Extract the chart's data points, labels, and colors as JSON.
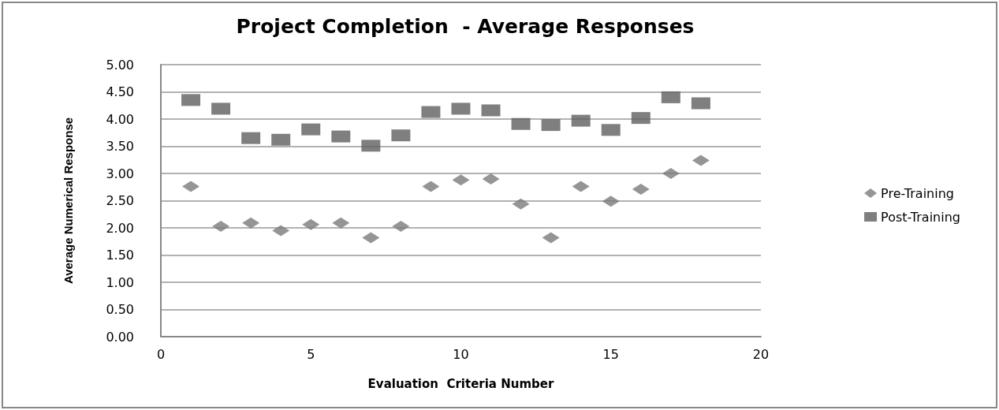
{
  "chart_data": {
    "type": "scatter",
    "title": "Project Completion  - Average Responses",
    "xlabel": "Evaluation  Criteria Number",
    "ylabel": "Average Numerical Response",
    "x": [
      1,
      2,
      3,
      4,
      5,
      6,
      7,
      8,
      9,
      10,
      11,
      12,
      13,
      14,
      15,
      16,
      17,
      18
    ],
    "series": [
      {
        "name": "Pre-Training",
        "color": "#7a7a7a",
        "marker": "diamond",
        "values": [
          2.76,
          2.03,
          2.09,
          1.95,
          2.06,
          2.09,
          1.82,
          2.03,
          2.76,
          2.88,
          2.9,
          2.44,
          1.82,
          2.76,
          2.49,
          2.71,
          3.0,
          3.24
        ]
      },
      {
        "name": "Post-Training",
        "color": "#5f5f5f",
        "marker": "square",
        "values": [
          4.35,
          4.19,
          3.65,
          3.62,
          3.81,
          3.68,
          3.51,
          3.7,
          4.13,
          4.19,
          4.16,
          3.91,
          3.89,
          3.97,
          3.8,
          4.02,
          4.4,
          4.29
        ]
      }
    ],
    "xlim": [
      0,
      20
    ],
    "xticks": [
      0,
      5,
      10,
      15,
      20
    ],
    "ylim": [
      0,
      5
    ],
    "yticks": [
      {
        "value": 0,
        "label": "0.00"
      },
      {
        "value": 0.5,
        "label": "0.50"
      },
      {
        "value": 1,
        "label": "1.00"
      },
      {
        "value": 1.5,
        "label": "1.50"
      },
      {
        "value": 2,
        "label": "2.00"
      },
      {
        "value": 2.5,
        "label": "2.50"
      },
      {
        "value": 3,
        "label": "3.00"
      },
      {
        "value": 3.5,
        "label": "3.50"
      },
      {
        "value": 4,
        "label": "4.00"
      },
      {
        "value": 4.5,
        "label": "4.50"
      },
      {
        "value": 5,
        "label": "5.00"
      }
    ],
    "grid": "y",
    "legend": "right"
  }
}
